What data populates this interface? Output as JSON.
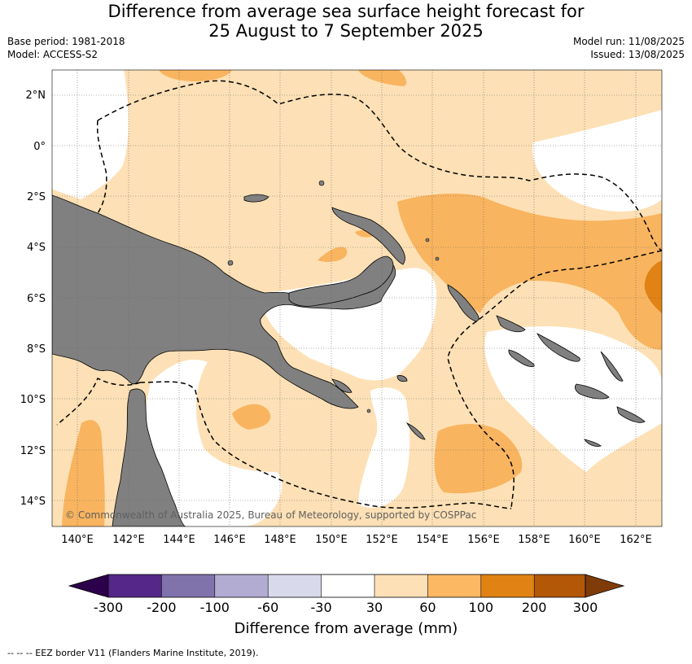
{
  "title": {
    "line1": "Difference from average sea surface height forecast for",
    "line2": "25 August to 7 September 2025"
  },
  "meta": {
    "base_period": "Base period: 1981-2018",
    "model": "Model: ACCESS-S2",
    "model_run": "Model run: 11/08/2025",
    "issued": "Issued: 13/08/2025"
  },
  "map": {
    "lon_ticks": [
      "140°E",
      "142°E",
      "144°E",
      "146°E",
      "148°E",
      "150°E",
      "152°E",
      "154°E",
      "156°E",
      "158°E",
      "160°E",
      "162°E"
    ],
    "lat_ticks": [
      "2°N",
      "0°",
      "2°S",
      "4°S",
      "6°S",
      "8°S",
      "10°S",
      "12°S",
      "14°S"
    ],
    "copyright": "© Commonwealth of Australia 2025, Bureau of Meteorology, supported by COSPPac",
    "colors": {
      "land": "#808080",
      "30_60": "#fde0b5",
      "60_100": "#f9b45f",
      "100_200": "#e08214",
      "eez": "#000000"
    }
  },
  "colorbar": {
    "label": "Difference from average (mm)",
    "ticks": [
      "-300",
      "-200",
      "-100",
      "-60",
      "-30",
      "30",
      "60",
      "100",
      "200",
      "300"
    ],
    "colors": [
      "#2d004b",
      "#542788",
      "#8073ac",
      "#b2abd2",
      "#d8daeb",
      "#ffffff",
      "#fee0b6",
      "#fdb863",
      "#e08214",
      "#b35806",
      "#7f3b08"
    ]
  },
  "footer": "--  --  -- EEZ border V11 (Flanders Marine Institute, 2019)."
}
